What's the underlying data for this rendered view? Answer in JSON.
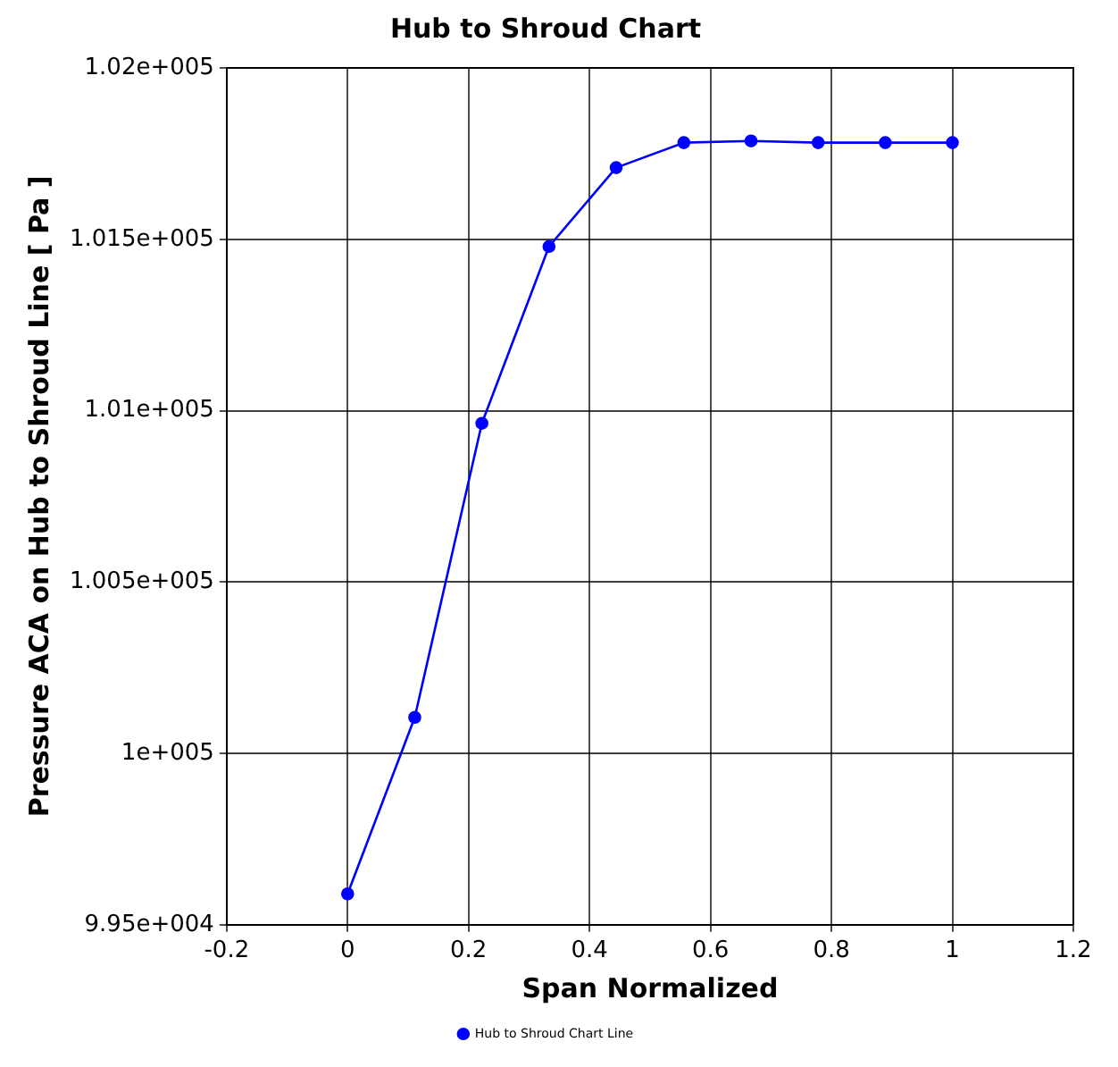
{
  "chart_data": {
    "type": "line",
    "title": "Hub to Shroud Chart",
    "xlabel": "Span Normalized",
    "ylabel": "Pressure ACA on Hub to Shroud Line [ Pa ]",
    "x": [
      0,
      0.111,
      0.222,
      0.333,
      0.444,
      0.556,
      0.667,
      0.778,
      0.889,
      1
    ],
    "series": [
      {
        "name": "Hub to Shroud Chart Line",
        "color": "#0000ff",
        "values": [
          99590,
          100105,
          100963,
          101479,
          101709,
          101782,
          101787,
          101782,
          101782,
          101782
        ]
      }
    ],
    "xlim": [
      -0.2,
      1.2
    ],
    "xticks": [
      -0.2,
      0,
      0.2,
      0.4,
      0.6,
      0.8,
      1,
      1.2
    ],
    "ylim": [
      99500,
      102000
    ],
    "yticks": [
      {
        "value": 99500,
        "label": "9.95e+004"
      },
      {
        "value": 100000,
        "label": "1e+005"
      },
      {
        "value": 100500,
        "label": "1.005e+005"
      },
      {
        "value": 101000,
        "label": "1.01e+005"
      },
      {
        "value": 101500,
        "label": "1.015e+005"
      },
      {
        "value": 102000,
        "label": "1.02e+005"
      }
    ],
    "grid": true,
    "legend": "bottom",
    "marker": "circle",
    "line_style": "solid"
  }
}
